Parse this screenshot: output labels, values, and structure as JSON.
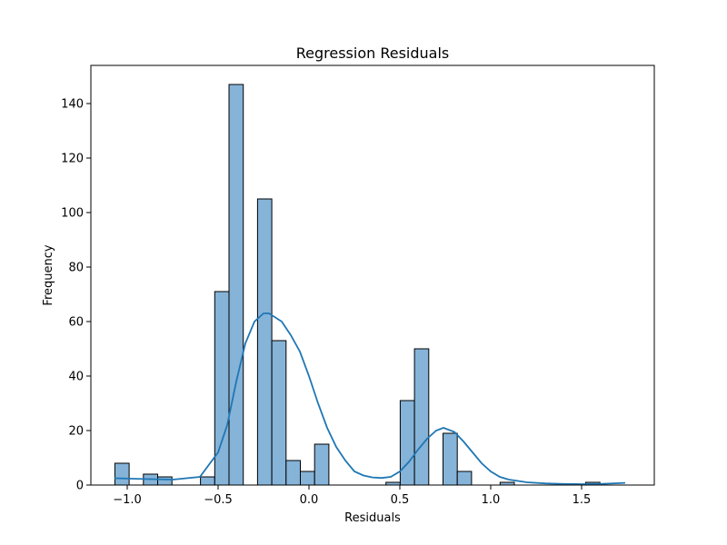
{
  "chart_data": {
    "type": "bar",
    "title": "Regression Residuals",
    "xlabel": "Residuals",
    "ylabel": "Frequency",
    "xlim": [
      -1.2,
      1.9
    ],
    "ylim": [
      0,
      154
    ],
    "xticks": [
      -1.0,
      -0.5,
      0.0,
      0.5,
      1.0,
      1.5
    ],
    "xtick_labels": [
      "−1.0",
      "−0.5",
      "0.0",
      "0.5",
      "1.0",
      "1.5"
    ],
    "yticks": [
      0,
      20,
      40,
      60,
      80,
      100,
      120,
      140
    ],
    "ytick_labels": [
      "0",
      "20",
      "40",
      "60",
      "80",
      "100",
      "120",
      "140"
    ],
    "grid": false,
    "legend": "none",
    "histogram": {
      "bin_edges_start": -1.068,
      "bin_width": 0.0785,
      "counts": [
        8,
        0,
        4,
        3,
        0,
        0,
        3,
        71,
        147,
        0,
        105,
        53,
        9,
        5,
        15,
        0,
        0,
        0,
        0,
        1,
        31,
        50,
        0,
        19,
        5,
        0,
        0,
        1,
        0,
        0,
        0,
        0,
        0,
        1
      ],
      "fill_color": "#86b3d8",
      "edge_color": "#000000"
    },
    "kde": {
      "x": [
        -1.07,
        -0.9,
        -0.75,
        -0.6,
        -0.5,
        -0.45,
        -0.4,
        -0.35,
        -0.3,
        -0.25,
        -0.22,
        -0.15,
        -0.1,
        -0.05,
        0.0,
        0.05,
        0.1,
        0.15,
        0.2,
        0.25,
        0.3,
        0.35,
        0.4,
        0.45,
        0.5,
        0.55,
        0.6,
        0.65,
        0.7,
        0.74,
        0.8,
        0.85,
        0.9,
        0.95,
        1.0,
        1.05,
        1.1,
        1.2,
        1.3,
        1.4,
        1.5,
        1.6,
        1.74
      ],
      "y": [
        2.5,
        2.2,
        2,
        3,
        12,
        22,
        38,
        52,
        60,
        63,
        63,
        60,
        55,
        49,
        40,
        30,
        21,
        14,
        9,
        5,
        3.5,
        2.8,
        2.6,
        3,
        5,
        8.5,
        13,
        17,
        20,
        21,
        19.5,
        16,
        12,
        8,
        5,
        3,
        2,
        1,
        0.6,
        0.4,
        0.35,
        0.4,
        0.8
      ],
      "color": "#1f77b4"
    }
  }
}
